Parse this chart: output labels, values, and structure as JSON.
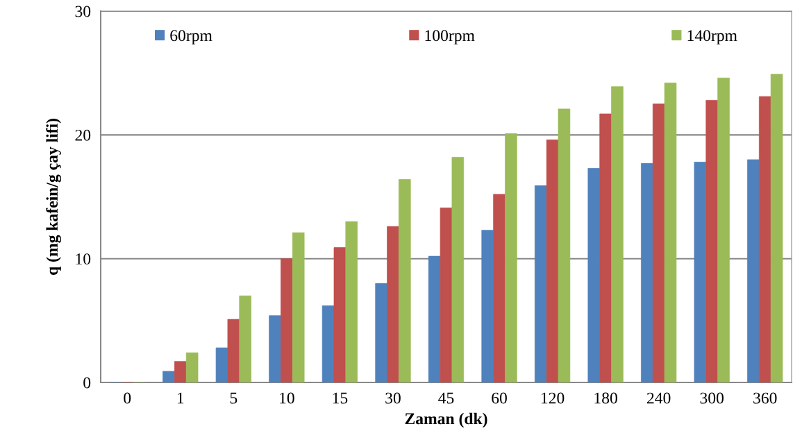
{
  "chart_data": {
    "type": "bar",
    "xlabel": "Zaman (dk)",
    "ylabel": "q (mg kafein/g çay lifi)",
    "categories": [
      "0",
      "1",
      "5",
      "10",
      "15",
      "30",
      "45",
      "60",
      "120",
      "180",
      "240",
      "300",
      "360"
    ],
    "series": [
      {
        "name": "60rpm",
        "color": "#4f81bd",
        "values": [
          0,
          0.9,
          2.8,
          5.4,
          6.2,
          8.0,
          10.2,
          12.3,
          15.9,
          17.3,
          17.7,
          17.8,
          18.0
        ]
      },
      {
        "name": "100rpm",
        "color": "#c0504d",
        "values": [
          0,
          1.7,
          5.1,
          10.0,
          10.9,
          12.6,
          14.1,
          15.2,
          19.6,
          21.7,
          22.5,
          22.8,
          23.1
        ]
      },
      {
        "name": "140rpm",
        "color": "#9bbb59",
        "values": [
          0,
          2.4,
          7.0,
          12.1,
          13.0,
          16.4,
          18.2,
          20.1,
          22.1,
          23.9,
          24.2,
          24.6,
          24.9
        ]
      }
    ],
    "ylim": [
      0,
      30
    ],
    "yticks": [
      0,
      10,
      20,
      30
    ],
    "grid": "y",
    "legend": "top"
  }
}
